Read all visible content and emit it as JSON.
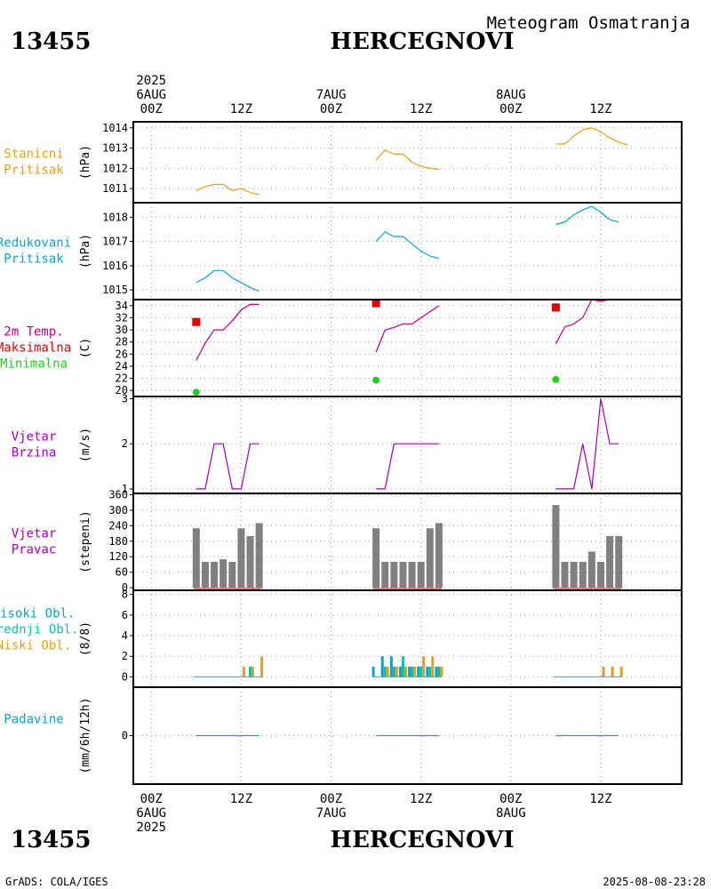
{
  "header": {
    "station_id": "13455",
    "station_name": "HERCEGNOVI",
    "subtitle": "Meteogram Osmatranja",
    "year": "2025"
  },
  "footer": {
    "station_id": "13455",
    "station_name": "HERCEGNOVI",
    "credit": "GrADS: COLA/IGES",
    "timestamp": "2025-08-08-23:28",
    "year": "2025"
  },
  "colors": {
    "station_pressure": "#e0a020",
    "reduced_pressure": "#10a0d0",
    "temperature": "#c00078",
    "tmax": "#e00000",
    "tmin": "#20d020",
    "wind": "#a000c0",
    "bars": "#808080",
    "high_cloud": "#10a0d0",
    "mid_cloud": "#10c0a0",
    "low_cloud": "#e0a020",
    "precip": "#10a0d0"
  },
  "chart_data": {
    "type": "line",
    "time_axis": {
      "xlim_hours": [
        -2,
        59
      ],
      "top_labels": [
        {
          "hour": 0,
          "lines": [
            "2025",
            "6AUG",
            "00Z"
          ]
        },
        {
          "hour": 10,
          "lines": [
            "12Z"
          ]
        },
        {
          "hour": 20,
          "lines": [
            "7AUG",
            "00Z"
          ]
        },
        {
          "hour": 30,
          "lines": [
            "12Z"
          ]
        },
        {
          "hour": 40,
          "lines": [
            "8AUG",
            "00Z"
          ]
        },
        {
          "hour": 50,
          "lines": [
            "12Z"
          ]
        }
      ],
      "bottom_labels": [
        {
          "hour": 0,
          "lines": [
            "00Z",
            "6AUG",
            "2025"
          ]
        },
        {
          "hour": 10,
          "lines": [
            "12Z"
          ]
        },
        {
          "hour": 20,
          "lines": [
            "00Z",
            "7AUG"
          ]
        },
        {
          "hour": 30,
          "lines": [
            "12Z"
          ]
        },
        {
          "hour": 40,
          "lines": [
            "00Z",
            "8AUG"
          ]
        },
        {
          "hour": 50,
          "lines": [
            "12Z"
          ]
        }
      ]
    },
    "panels": [
      {
        "id": "stanicni",
        "labels": [
          "Stanicni",
          "Pritisak"
        ],
        "label_colors": [
          "station_pressure",
          "station_pressure"
        ],
        "unit": "(hPa)",
        "ylim": [
          1010.3,
          1014.3
        ],
        "yticks": [
          1011,
          1012,
          1013,
          1014
        ],
        "series": [
          {
            "name": "Stanicni pritisak",
            "color": "station_pressure",
            "segments": [
              [
                [
                  5,
                  1010.9
                ],
                [
                  6,
                  1011.1
                ],
                [
                  7,
                  1011.2
                ],
                [
                  8,
                  1011.2
                ],
                [
                  9,
                  1010.9
                ],
                [
                  10,
                  1011.0
                ],
                [
                  11,
                  1010.8
                ],
                [
                  12,
                  1010.7
                ]
              ],
              [
                [
                  25,
                  1012.4
                ],
                [
                  26,
                  1012.9
                ],
                [
                  27,
                  1012.7
                ],
                [
                  28,
                  1012.7
                ],
                [
                  29,
                  1012.3
                ],
                [
                  30,
                  1012.1
                ],
                [
                  31,
                  1012.0
                ],
                [
                  32,
                  1011.95
                ]
              ],
              [
                [
                  45,
                  1013.2
                ],
                [
                  46,
                  1013.2
                ],
                [
                  47,
                  1013.6
                ],
                [
                  48,
                  1013.9
                ],
                [
                  49,
                  1014.0
                ],
                [
                  50,
                  1013.8
                ],
                [
                  51,
                  1013.5
                ],
                [
                  52,
                  1013.3
                ],
                [
                  53,
                  1013.15
                ]
              ]
            ]
          }
        ]
      },
      {
        "id": "redukovani",
        "labels": [
          "Redukovani",
          "Pritisak"
        ],
        "label_colors": [
          "reduced_pressure",
          "reduced_pressure"
        ],
        "unit": "(hPa)",
        "ylim": [
          1014.6,
          1018.6
        ],
        "yticks": [
          1015,
          1016,
          1017,
          1018
        ],
        "series": [
          {
            "name": "Redukovani pritisak",
            "color": "reduced_pressure",
            "segments": [
              [
                [
                  5,
                  1015.3
                ],
                [
                  6,
                  1015.5
                ],
                [
                  7,
                  1015.8
                ],
                [
                  8,
                  1015.8
                ],
                [
                  9,
                  1015.5
                ],
                [
                  10,
                  1015.3
                ],
                [
                  11,
                  1015.1
                ],
                [
                  12,
                  1014.95
                ]
              ],
              [
                [
                  25,
                  1017.0
                ],
                [
                  26,
                  1017.4
                ],
                [
                  27,
                  1017.2
                ],
                [
                  28,
                  1017.2
                ],
                [
                  29,
                  1016.9
                ],
                [
                  30,
                  1016.6
                ],
                [
                  31,
                  1016.4
                ],
                [
                  32,
                  1016.3
                ]
              ],
              [
                [
                  45,
                  1017.7
                ],
                [
                  46,
                  1017.8
                ],
                [
                  47,
                  1018.1
                ],
                [
                  48,
                  1018.3
                ],
                [
                  49,
                  1018.45
                ],
                [
                  50,
                  1018.2
                ],
                [
                  51,
                  1017.9
                ],
                [
                  52,
                  1017.8
                ]
              ]
            ]
          }
        ]
      },
      {
        "id": "temperatura",
        "labels": [
          "2m Temp.",
          "Maksimalna",
          "Minimalna"
        ],
        "label_colors": [
          "temperature",
          "tmax",
          "tmin"
        ],
        "unit": "(C)",
        "ylim": [
          19,
          35
        ],
        "yticks": [
          20,
          22,
          24,
          26,
          28,
          30,
          32,
          34
        ],
        "series": [
          {
            "name": "2m Temp.",
            "color": "temperature",
            "segments": [
              [
                [
                  5,
                  25
                ],
                [
                  6,
                  27.8
                ],
                [
                  7,
                  30
                ],
                [
                  8,
                  30
                ],
                [
                  9,
                  31.5
                ],
                [
                  10,
                  33.3
                ],
                [
                  11,
                  34.2
                ],
                [
                  12,
                  34.2
                ]
              ],
              [
                [
                  25,
                  26.3
                ],
                [
                  26,
                  30
                ],
                [
                  27,
                  30.4
                ],
                [
                  28,
                  31
                ],
                [
                  29,
                  31
                ],
                [
                  30,
                  32
                ],
                [
                  31,
                  33
                ],
                [
                  32,
                  34
                ]
              ],
              [
                [
                  45,
                  27.7
                ],
                [
                  46,
                  30.5
                ],
                [
                  47,
                  31
                ],
                [
                  48,
                  32
                ],
                [
                  49,
                  35
                ],
                [
                  50,
                  34.7
                ],
                [
                  51,
                  35
                ],
                [
                  52,
                  35
                ]
              ]
            ]
          }
        ],
        "points": [
          {
            "name": "Maksimalna",
            "color": "tmax",
            "shape": "square",
            "values": [
              [
                5,
                31.3
              ],
              [
                25,
                34.4
              ],
              [
                45,
                33.7
              ]
            ]
          },
          {
            "name": "Minimalna",
            "color": "tmin",
            "shape": "circle",
            "values": [
              [
                5,
                19.7
              ],
              [
                25,
                21.7
              ],
              [
                45,
                21.8
              ]
            ]
          }
        ]
      },
      {
        "id": "vjetar_brzina",
        "labels": [
          "Vjetar",
          "Brzina"
        ],
        "label_colors": [
          "wind",
          "wind"
        ],
        "unit": "(m/s)",
        "ylim": [
          0.9,
          3.05
        ],
        "yticks": [
          1,
          2,
          3
        ],
        "series": [
          {
            "name": "Vjetar brzina",
            "color": "wind",
            "segments": [
              [
                [
                  5,
                  1
                ],
                [
                  6,
                  1
                ],
                [
                  7,
                  2
                ],
                [
                  8,
                  2
                ],
                [
                  9,
                  1
                ],
                [
                  10,
                  1
                ],
                [
                  11,
                  2
                ],
                [
                  12,
                  2
                ]
              ],
              [
                [
                  25,
                  1
                ],
                [
                  26,
                  1
                ],
                [
                  27,
                  2
                ],
                [
                  28,
                  2
                ],
                [
                  29,
                  2
                ],
                [
                  30,
                  2
                ],
                [
                  31,
                  2
                ],
                [
                  32,
                  2
                ]
              ],
              [
                [
                  45,
                  1
                ],
                [
                  46,
                  1
                ],
                [
                  47,
                  1
                ],
                [
                  48,
                  2
                ],
                [
                  49,
                  1
                ],
                [
                  50,
                  3
                ],
                [
                  51,
                  2
                ],
                [
                  52,
                  2
                ]
              ]
            ]
          }
        ]
      },
      {
        "id": "vjetar_pravac",
        "labels": [
          "Vjetar",
          "Pravac"
        ],
        "label_colors": [
          "wind",
          "wind"
        ],
        "unit": "(stepeni)",
        "ylim": [
          -10,
          365
        ],
        "yticks": [
          0,
          60,
          120,
          180,
          240,
          300,
          360
        ],
        "bars": [
          {
            "name": "Vjetar pravac",
            "color": "bars",
            "values": [
              [
                5,
                230
              ],
              [
                6,
                100
              ],
              [
                7,
                100
              ],
              [
                8,
                110
              ],
              [
                9,
                100
              ],
              [
                10,
                230
              ],
              [
                11,
                200
              ],
              [
                12,
                250
              ],
              [
                25,
                230
              ],
              [
                26,
                100
              ],
              [
                27,
                100
              ],
              [
                28,
                100
              ],
              [
                29,
                100
              ],
              [
                30,
                100
              ],
              [
                31,
                230
              ],
              [
                32,
                250
              ],
              [
                45,
                320
              ],
              [
                46,
                100
              ],
              [
                47,
                100
              ],
              [
                48,
                100
              ],
              [
                49,
                140
              ],
              [
                50,
                100
              ],
              [
                51,
                200
              ],
              [
                52,
                200
              ]
            ]
          }
        ]
      },
      {
        "id": "oblacnost",
        "labels": [
          "Visoki Obl.",
          "Srednji Obl.",
          "Niski Obl."
        ],
        "label_colors": [
          "high_cloud",
          "mid_cloud",
          "low_cloud"
        ],
        "unit": "(8/8)",
        "ylim": [
          -1,
          8.4
        ],
        "yticks": [
          0,
          2,
          4,
          6,
          8
        ],
        "cloud_bars": [
          {
            "name": "Visoki Obl.",
            "color": "high_cloud",
            "values": [
              [
                25,
                1
              ],
              [
                26,
                2
              ],
              [
                27,
                2
              ],
              [
                28,
                1
              ],
              [
                29,
                1
              ],
              [
                30,
                1
              ],
              [
                31,
                1
              ],
              [
                32,
                1
              ]
            ]
          },
          {
            "name": "Srednji Obl.",
            "color": "mid_cloud",
            "values": [
              [
                26,
                1
              ],
              [
                27,
                1
              ],
              [
                28,
                2
              ],
              [
                29,
                1
              ],
              [
                30,
                1
              ],
              [
                31,
                1
              ],
              [
                32,
                1
              ],
              [
                11,
                1
              ]
            ]
          },
          {
            "name": "Niski Obl.",
            "color": "low_cloud",
            "values": [
              [
                10,
                1
              ],
              [
                11,
                1
              ],
              [
                12,
                2
              ],
              [
                26,
                1
              ],
              [
                27,
                1
              ],
              [
                28,
                1
              ],
              [
                29,
                1
              ],
              [
                30,
                2
              ],
              [
                31,
                2
              ],
              [
                32,
                1
              ],
              [
                50,
                1
              ],
              [
                51,
                1
              ],
              [
                52,
                1
              ]
            ]
          }
        ]
      },
      {
        "id": "padavine",
        "labels": [
          "Padavine"
        ],
        "label_colors": [
          "precip"
        ],
        "unit": "(mm/6h/12h)",
        "ylim": [
          -2,
          2
        ],
        "yticks": [
          0
        ],
        "series": [
          {
            "name": "Padavine",
            "color": "precip",
            "segments": [
              [
                [
                  5,
                  0
                ],
                [
                  12,
                  0
                ]
              ],
              [
                [
                  25,
                  0
                ],
                [
                  32,
                  0
                ]
              ],
              [
                [
                  45,
                  0
                ],
                [
                  52,
                  0
                ]
              ]
            ]
          }
        ]
      }
    ]
  }
}
